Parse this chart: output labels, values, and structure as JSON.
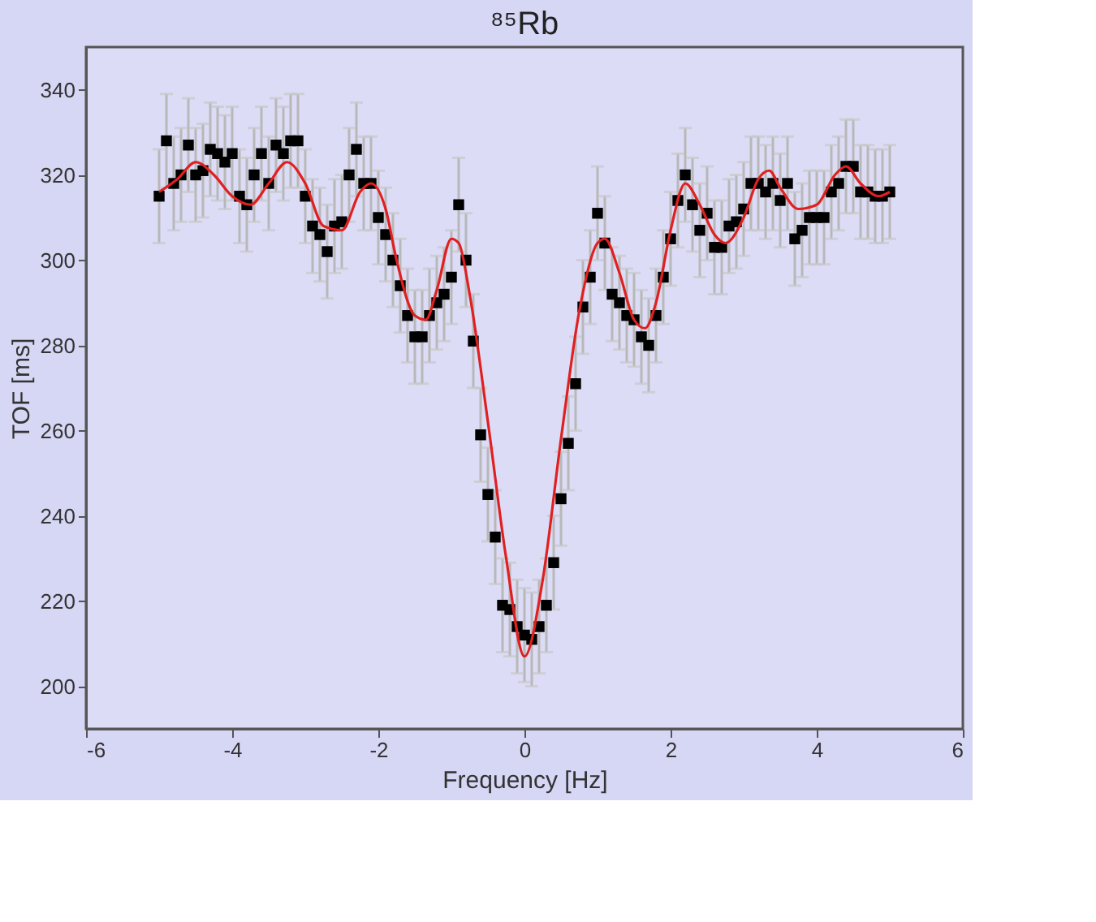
{
  "chart_data": {
    "type": "scatter",
    "title": "⁸⁵Rb",
    "xlabel": "Frequency [Hz]",
    "ylabel": "TOF [ms]",
    "xlim": [
      -6,
      6
    ],
    "xticks": [
      -6,
      -4,
      -2,
      0,
      2,
      4,
      6
    ],
    "ylim": [
      190,
      350
    ],
    "yticks": [
      200,
      220,
      240,
      260,
      280,
      300,
      320,
      340
    ],
    "grid": false,
    "series": [
      {
        "type": "line",
        "color": "#e02020",
        "marker": "none",
        "line_style": "solid",
        "x": [
          -5,
          -4.75,
          -4.5,
          -4.25,
          -4,
          -3.75,
          -3.5,
          -3.25,
          -3,
          -2.75,
          -2.5,
          -2.25,
          -2.1,
          -1.9,
          -1.75,
          -1.5,
          -1.35,
          -1.2,
          -1,
          -0.9,
          -0.75,
          -0.5,
          -0.25,
          0,
          0.25,
          0.5,
          0.75,
          1,
          1.1,
          1.3,
          1.5,
          1.65,
          1.8,
          2,
          2.2,
          2.4,
          2.6,
          2.75,
          3,
          3.2,
          3.35,
          3.5,
          3.75,
          4,
          4.25,
          4.4,
          4.6,
          4.85,
          5
        ],
        "values": [
          316,
          319,
          323,
          320,
          315,
          313,
          318,
          323,
          318,
          308,
          307,
          316,
          318,
          312,
          300,
          287,
          286,
          293,
          305,
          304,
          292,
          262,
          230,
          207,
          225,
          258,
          288,
          304,
          305,
          297,
          286,
          284,
          290,
          307,
          318,
          313,
          306,
          304,
          310,
          319,
          321,
          317,
          312,
          313,
          320,
          322,
          318,
          315,
          316
        ]
      },
      {
        "color": "#000000",
        "marker": "square",
        "x": [
          -5,
          -4.9,
          -4.8,
          -4.7,
          -4.6,
          -4.5,
          -4.4,
          -4.3,
          -4.2,
          -4.1,
          -4,
          -3.9,
          -3.8,
          -3.7,
          -3.6,
          -3.5,
          -3.4,
          -3.3,
          -3.2,
          -3.1,
          -3,
          -2.9,
          -2.8,
          -2.7,
          -2.6,
          -2.5,
          -2.4,
          -2.3,
          -2.2,
          -2.1,
          -2,
          -1.9,
          -1.8,
          -1.7,
          -1.6,
          -1.5,
          -1.4,
          -1.3,
          -1.2,
          -1.1,
          -1,
          -0.9,
          -0.8,
          -0.7,
          -0.6,
          -0.5,
          -0.4,
          -0.3,
          -0.2,
          -0.1,
          0,
          0.1,
          0.2,
          0.3,
          0.4,
          0.5,
          0.6,
          0.7,
          0.8,
          0.9,
          1,
          1.1,
          1.2,
          1.3,
          1.4,
          1.5,
          1.6,
          1.7,
          1.8,
          1.9,
          2,
          2.1,
          2.2,
          2.3,
          2.4,
          2.5,
          2.6,
          2.7,
          2.8,
          2.9,
          3,
          3.1,
          3.2,
          3.3,
          3.4,
          3.5,
          3.6,
          3.7,
          3.8,
          3.9,
          4,
          4.1,
          4.2,
          4.3,
          4.4,
          4.5,
          4.6,
          4.7,
          4.8,
          4.9,
          5
        ],
        "values": [
          315,
          328,
          318,
          320,
          327,
          320,
          321,
          326,
          325,
          323,
          325,
          315,
          313,
          320,
          325,
          318,
          327,
          325,
          328,
          328,
          315,
          308,
          306,
          302,
          308,
          309,
          320,
          326,
          318,
          318,
          310,
          306,
          300,
          294,
          287,
          282,
          282,
          287,
          290,
          292,
          296,
          313,
          300,
          281,
          259,
          245,
          235,
          219,
          218,
          214,
          212,
          211,
          214,
          219,
          229,
          244,
          257,
          271,
          289,
          296,
          311,
          304,
          292,
          290,
          287,
          286,
          282,
          280,
          287,
          296,
          305,
          314,
          320,
          313,
          307,
          311,
          303,
          303,
          308,
          309,
          312,
          318,
          318,
          316,
          318,
          314,
          318,
          305,
          307,
          310,
          310,
          310,
          316,
          318,
          322,
          322,
          316,
          316,
          315,
          315,
          316
        ],
        "errors": [
          11,
          11,
          11,
          11,
          11,
          11,
          11,
          11,
          11,
          11,
          11,
          11,
          11,
          11,
          11,
          11,
          11,
          11,
          11,
          11,
          11,
          11,
          11,
          11,
          11,
          11,
          11,
          11,
          11,
          11,
          11,
          11,
          11,
          11,
          11,
          11,
          11,
          11,
          11,
          11,
          11,
          11,
          11,
          11,
          11,
          11,
          11,
          11,
          11,
          11,
          11,
          11,
          11,
          11,
          11,
          11,
          11,
          11,
          11,
          11,
          11,
          11,
          11,
          11,
          11,
          11,
          11,
          11,
          11,
          11,
          11,
          11,
          11,
          11,
          11,
          11,
          11,
          11,
          11,
          11,
          11,
          11,
          11,
          11,
          11,
          11,
          11,
          11,
          11,
          11,
          11,
          11,
          11,
          11,
          11,
          11,
          11,
          11,
          11,
          11,
          11
        ]
      }
    ]
  }
}
